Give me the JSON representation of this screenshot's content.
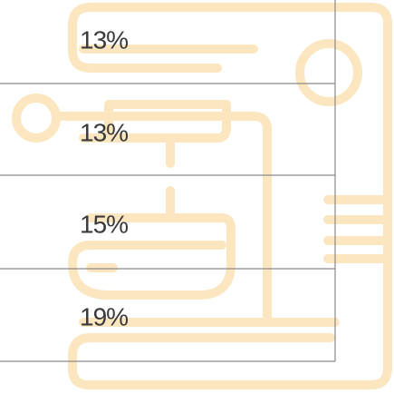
{
  "items": [
    {
      "label": "13%"
    },
    {
      "label": "13%"
    },
    {
      "label": "15%"
    },
    {
      "label": "19%"
    }
  ]
}
